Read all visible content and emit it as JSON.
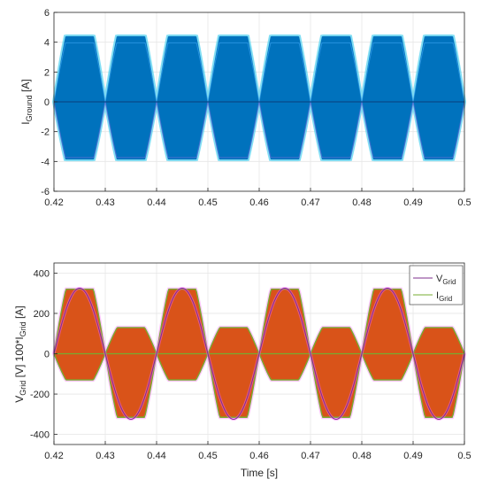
{
  "chart_data": [
    {
      "type": "line",
      "ylabel": {
        "main": "I",
        "sub": "Ground",
        "suffix": " [A]"
      },
      "xlim": [
        0.42,
        0.5
      ],
      "ylim": [
        -6,
        6
      ],
      "xticks": [
        "0.42",
        "0.43",
        "0.44",
        "0.45",
        "0.46",
        "0.47",
        "0.48",
        "0.49",
        "0.5"
      ],
      "yticks": [
        "-6",
        "-4",
        "-2",
        "0",
        "2",
        "4",
        "6"
      ],
      "grid": true,
      "series": [
        {
          "envelope": "abs_sin_100hz",
          "amplitude": 4.4,
          "peak_times": [
            0.425,
            0.435,
            0.445,
            0.455,
            0.465,
            0.475,
            0.485,
            0.495
          ],
          "zero_times": [
            0.42,
            0.43,
            0.44,
            0.45,
            0.46,
            0.47,
            0.48,
            0.49,
            0.5
          ],
          "color": "#0072BD",
          "halo_color": "#4DD0F0"
        }
      ]
    },
    {
      "type": "line",
      "xlabel": "Time [s]",
      "ylabel": {
        "prefix": "V",
        "sub1": "Grid",
        "mid": " [V]  100*I",
        "sub2": "Grid",
        "suffix": " [A]"
      },
      "xlim": [
        0.42,
        0.5
      ],
      "ylim": [
        -450,
        450
      ],
      "xticks": [
        "0.42",
        "0.43",
        "0.44",
        "0.45",
        "0.46",
        "0.47",
        "0.48",
        "0.49",
        "0.5"
      ],
      "yticks": [
        "-400",
        "-200",
        "0",
        "200",
        "400"
      ],
      "grid": true,
      "legend": {
        "placement": "top-right"
      },
      "series": [
        {
          "name_main": "V",
          "name_sub": "Grid",
          "kind": "sine",
          "amplitude": 325,
          "frequency_hz": 50,
          "peak_times": [
            0.425,
            0.445,
            0.465,
            0.485
          ],
          "trough_times": [
            0.435,
            0.455,
            0.475,
            0.495
          ],
          "color": "#7E2F8E",
          "halo_color": "#FF66FF"
        },
        {
          "name_main": "I",
          "name_sub": "Grid",
          "kind": "switching_band",
          "positive_peak": 320,
          "negative_peak": -130,
          "secondary_positive_peak": 130,
          "secondary_negative_peak": -315,
          "color": "#D95319",
          "edge_color": "#77AC30"
        }
      ]
    }
  ]
}
